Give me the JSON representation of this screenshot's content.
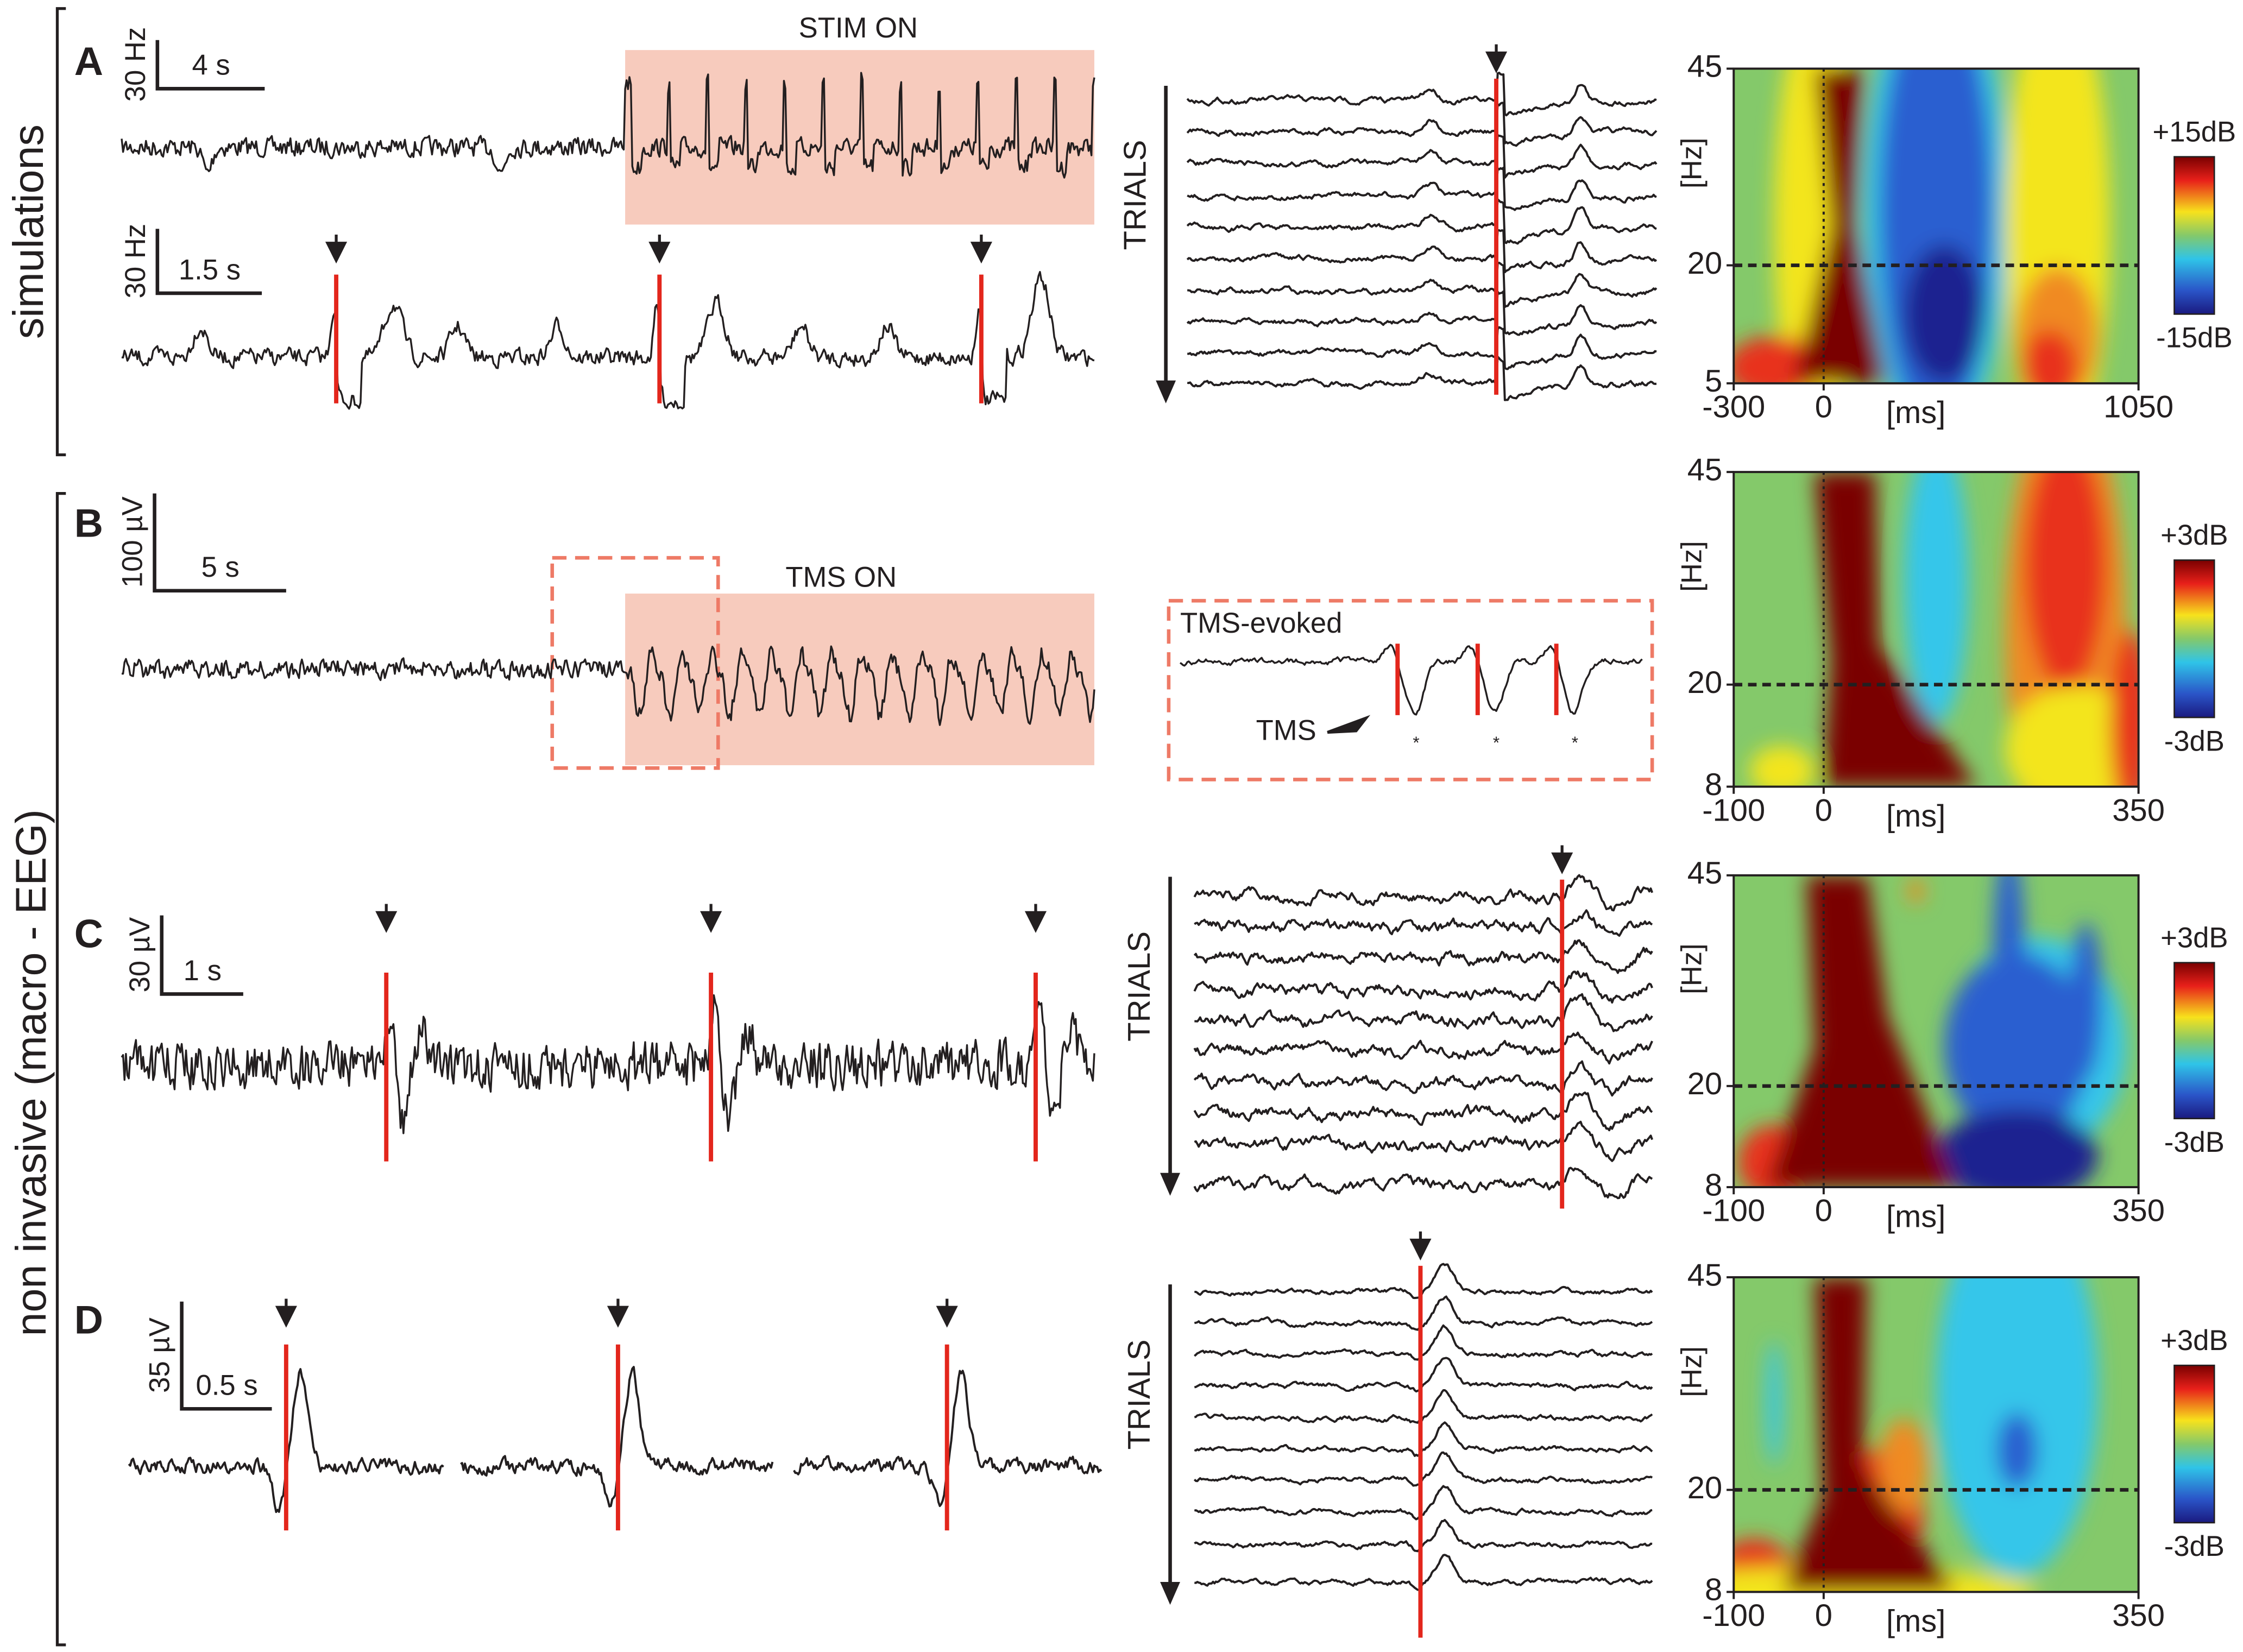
{
  "side_labels": {
    "top": "simulations",
    "bottom": "non invasive (macro - EEG)"
  },
  "panels": [
    {
      "letter": "A",
      "scale_bars": [
        {
          "amplitude": "30 Hz",
          "time": "4 s"
        },
        {
          "amplitude": "30 Hz",
          "time": "1.5 s"
        }
      ],
      "shaded_label": "STIM ON",
      "trials_label": "TRIALS",
      "tf": {
        "y_label": "[Hz]",
        "x_label": "[ms]",
        "xticks": [
          -300,
          0,
          1050
        ],
        "yticks": [
          5,
          20,
          45
        ],
        "colorbar": [
          "+15dB",
          "-15dB"
        ]
      }
    },
    {
      "letter": "B",
      "scale_bars": [
        {
          "amplitude": "100 µV",
          "time": "5 s"
        }
      ],
      "shaded_label": "TMS ON",
      "inset": {
        "title": "TMS-evoked",
        "pointer": "TMS",
        "markers": [
          "*",
          "*",
          "*"
        ]
      },
      "tf": {
        "y_label": "[Hz]",
        "x_label": "[ms]",
        "xticks": [
          -100,
          0,
          350
        ],
        "yticks": [
          8,
          20,
          45
        ],
        "colorbar": [
          "+3dB",
          "-3dB"
        ]
      }
    },
    {
      "letter": "C",
      "scale_bars": [
        {
          "amplitude": "30 µV",
          "time": "1 s"
        }
      ],
      "trials_label": "TRIALS",
      "tf": {
        "y_label": "[Hz]",
        "x_label": "[ms]",
        "xticks": [
          -100,
          0,
          350
        ],
        "yticks": [
          8,
          20,
          45
        ],
        "colorbar": [
          "+3dB",
          "-3dB"
        ]
      }
    },
    {
      "letter": "D",
      "scale_bars": [
        {
          "amplitude": "35 µV",
          "time": "0.5 s"
        }
      ],
      "trials_label": "TRIALS",
      "tf": {
        "y_label": "[Hz]",
        "x_label": "[ms]",
        "xticks": [
          -100,
          0,
          350
        ],
        "yticks": [
          8,
          20,
          45
        ],
        "colorbar": [
          "+3dB",
          "-3dB"
        ]
      }
    }
  ]
}
